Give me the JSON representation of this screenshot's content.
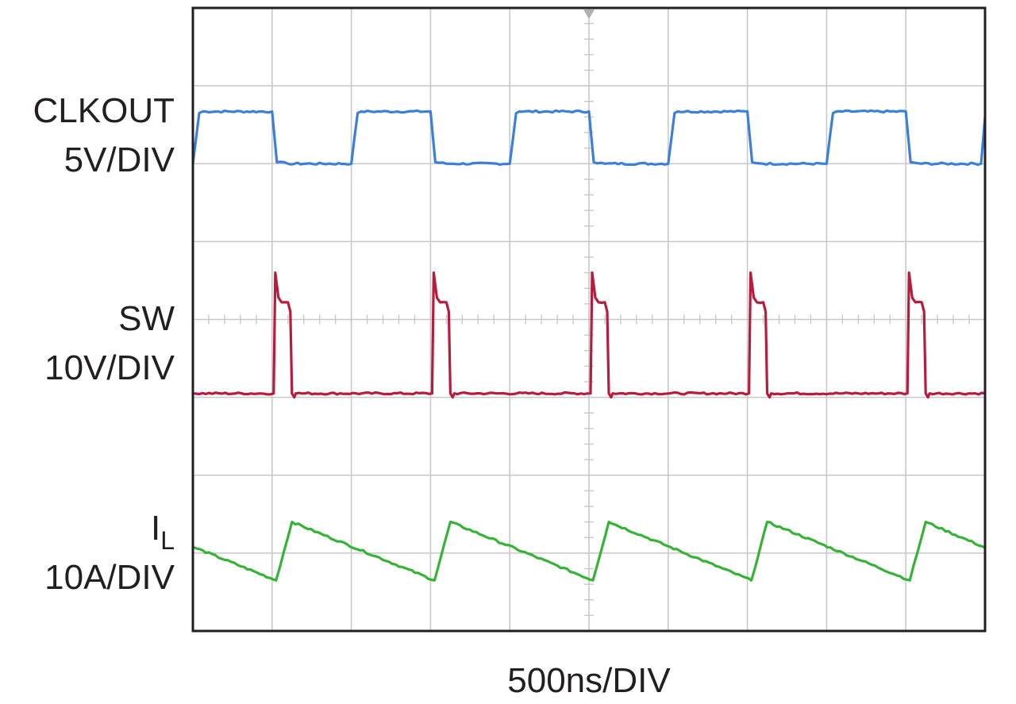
{
  "chart_data": {
    "type": "line",
    "title": "",
    "xlabel": "500ns/DIV",
    "x_unit": "DIV",
    "xlim": [
      0,
      10
    ],
    "ylim": [
      -4,
      4
    ],
    "grid": true,
    "clock_period_div": 2.0,
    "series": [
      {
        "name": "CLKOUT",
        "scale": "5V/DIV",
        "color": "#3b7fdb",
        "x": [
          0,
          0.08,
          0.12,
          1.0,
          1.06,
          1.2,
          2.0,
          2.08,
          2.12,
          3.0,
          3.06,
          3.2,
          4.0,
          4.08,
          4.12,
          5.0,
          5.06,
          5.2,
          6.0,
          6.08,
          6.12,
          7.0,
          7.06,
          7.2,
          8.0,
          8.08,
          8.12,
          9.0,
          9.06,
          9.2,
          9.95,
          10.0
        ],
        "y": [
          2.0,
          2.65,
          2.67,
          2.67,
          2.02,
          2.0,
          2.0,
          2.65,
          2.67,
          2.67,
          2.02,
          2.0,
          2.0,
          2.65,
          2.67,
          2.67,
          2.02,
          2.0,
          2.0,
          2.65,
          2.67,
          2.67,
          2.02,
          2.0,
          2.0,
          2.65,
          2.67,
          2.67,
          2.02,
          2.0,
          2.0,
          2.6
        ]
      },
      {
        "name": "SW",
        "scale": "10V/DIV",
        "color": "#b81c3c",
        "x": [
          0,
          1.02,
          1.04,
          1.08,
          1.12,
          1.2,
          1.23,
          1.25,
          1.28,
          1.3,
          3.02,
          3.04,
          3.08,
          3.12,
          3.2,
          3.23,
          3.25,
          3.28,
          3.3,
          5.02,
          5.04,
          5.08,
          5.12,
          5.2,
          5.23,
          5.25,
          5.28,
          5.3,
          7.02,
          7.04,
          7.08,
          7.12,
          7.2,
          7.23,
          7.25,
          7.28,
          7.3,
          9.02,
          9.04,
          9.08,
          9.12,
          9.2,
          9.23,
          9.25,
          9.28,
          9.3,
          10.0
        ],
        "y": [
          -0.95,
          -0.95,
          0.6,
          0.28,
          0.22,
          0.22,
          0.1,
          -0.95,
          -1.0,
          -0.95,
          -0.95,
          0.6,
          0.28,
          0.22,
          0.22,
          0.1,
          -0.95,
          -1.0,
          -0.95,
          -0.95,
          0.6,
          0.28,
          0.22,
          0.22,
          0.1,
          -0.95,
          -1.0,
          -0.95,
          -0.95,
          0.6,
          0.28,
          0.22,
          0.22,
          0.1,
          -0.95,
          -1.0,
          -0.95,
          -0.95,
          0.6,
          0.28,
          0.22,
          0.22,
          0.1,
          -0.95,
          -1.0,
          -0.95,
          -0.95
        ]
      },
      {
        "name": "I_L",
        "scale": "10A/DIV",
        "color": "#36b336",
        "x": [
          0,
          1.05,
          1.25,
          3.05,
          3.25,
          5.05,
          5.25,
          7.05,
          7.25,
          9.05,
          9.25,
          10.0
        ],
        "y": [
          -2.92,
          -3.35,
          -2.6,
          -3.35,
          -2.6,
          -3.35,
          -2.6,
          -3.35,
          -2.6,
          -3.35,
          -2.6,
          -2.93
        ]
      }
    ],
    "labels": {
      "clk_name": "CLKOUT",
      "clk_scale": "5V/DIV",
      "sw_name": "SW",
      "sw_scale": "10V/DIV",
      "il_name": "I",
      "il_sub": "L",
      "il_scale": "10A/DIV"
    }
  }
}
